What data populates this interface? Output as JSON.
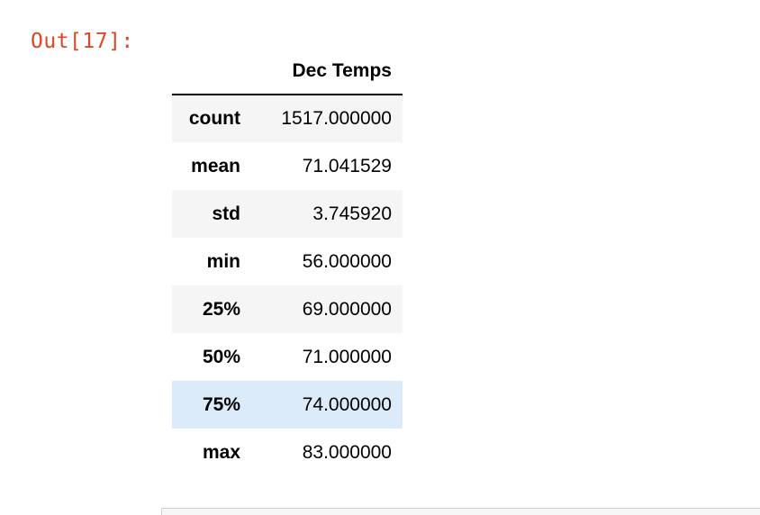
{
  "output_prompt": "Out[17]:",
  "table": {
    "index_header": "",
    "column": "Dec Temps",
    "rows": [
      {
        "label": "count",
        "value": "1517.000000"
      },
      {
        "label": "mean",
        "value": "71.041529"
      },
      {
        "label": "std",
        "value": "3.745920"
      },
      {
        "label": "min",
        "value": "56.000000"
      },
      {
        "label": "25%",
        "value": "69.000000"
      },
      {
        "label": "50%",
        "value": "71.000000"
      },
      {
        "label": "75%",
        "value": "74.000000"
      },
      {
        "label": "max",
        "value": "83.000000"
      }
    ]
  },
  "colors": {
    "prompt": "#d84a24",
    "row_stripe": "#f5f5f5",
    "row_hover": "#dbebf9"
  }
}
